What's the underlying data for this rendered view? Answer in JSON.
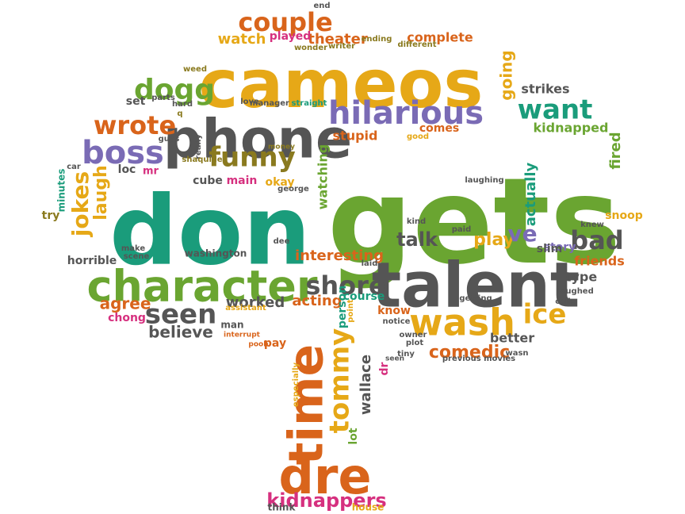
{
  "colors": {
    "teal": "#1a9c7b",
    "green": "#6aa531",
    "orange": "#d9641b",
    "gold": "#e6a817",
    "gray": "#555555",
    "purple": "#7a6bb5",
    "pink": "#d6307f",
    "olive": "#8a7a1f"
  },
  "words": [
    "don",
    "gets",
    "talent",
    "cameos",
    "phone",
    "character",
    "hilarious",
    "wash",
    "dre",
    "time",
    "boss",
    "funny",
    "tommy",
    "dogg",
    "wrote",
    "couple",
    "seen",
    "shore",
    "jokes",
    "laugh",
    "want",
    "bad",
    "ice",
    "comedic",
    "kidnappers",
    "believe",
    "agree",
    "going",
    "fired",
    "actually",
    "talk",
    "play",
    "ve",
    "interesting",
    "acting",
    "worked",
    "wallace",
    "person",
    "lot",
    "dr",
    "theater",
    "complete",
    "watch",
    "played",
    "stupid",
    "watching",
    "okay",
    "main",
    "cube",
    "loc",
    "mr",
    "set",
    "friends",
    "type",
    "better",
    "story",
    "slim",
    "snoop",
    "kidnapped",
    "strikes",
    "comes",
    "course",
    "know",
    "horrible",
    "chong",
    "washington",
    "pay",
    "man",
    "house",
    "think",
    "especially",
    "assistant",
    "interrupt",
    "pooh",
    "minutes",
    "try",
    "car",
    "weed",
    "parts",
    "hard",
    "guys",
    "really",
    "shaquille",
    "money",
    "george",
    "love",
    "manager",
    "straight",
    "good",
    "laughing",
    "kind",
    "knew",
    "laughed",
    "calls",
    "getting",
    "paid",
    "laid",
    "owner",
    "plot",
    "notice",
    "tiny",
    "seen",
    "previous movies",
    "wasn",
    "end",
    "different",
    "writer",
    "ending",
    "wonder",
    "make",
    "scene",
    "dee",
    "point",
    "q"
  ]
}
